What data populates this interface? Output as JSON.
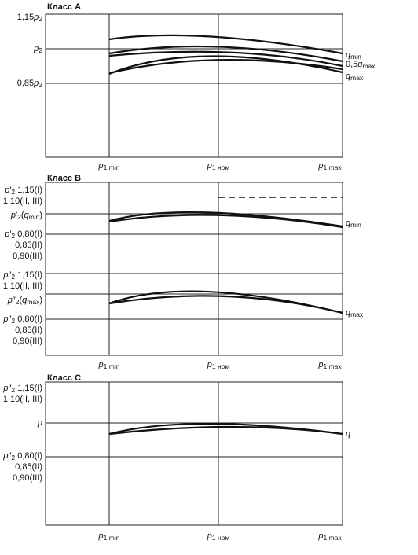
{
  "panels": [
    {
      "title": "Класс A",
      "y_labels": [
        [
          {
            "text": "1,15"
          },
          {
            "text": "p",
            "italic": true
          },
          {
            "text": "2",
            "sub": true
          }
        ],
        [
          {
            "text": "p",
            "italic": true
          },
          {
            "text": "2",
            "sub": true
          }
        ],
        [
          {
            "text": "0,85"
          },
          {
            "text": "p",
            "italic": true
          },
          {
            "text": "2",
            "sub": true
          }
        ]
      ],
      "x_labels": [
        [
          {
            "text": "p",
            "italic": true
          },
          {
            "text": "1 min",
            "sub": true
          }
        ],
        [
          {
            "text": "p",
            "italic": true
          },
          {
            "text": "1 ном",
            "sub": true
          }
        ],
        [
          {
            "text": "p",
            "italic": true
          },
          {
            "text": "1 max",
            "sub": true
          }
        ]
      ],
      "curve_labels": [
        [
          {
            "text": "q",
            "italic": true
          },
          {
            "text": "min",
            "sub": true
          }
        ],
        [
          {
            "text": "0,5"
          },
          {
            "text": "q",
            "italic": true
          },
          {
            "text": "max",
            "sub": true
          }
        ],
        [
          {
            "text": "q",
            "italic": true
          },
          {
            "text": "max",
            "sub": true
          }
        ]
      ]
    },
    {
      "title": "Класс B",
      "y_labels": [
        [
          {
            "text": "p",
            "italic": true
          },
          {
            "text": "′"
          },
          {
            "text": "2",
            "sub": true
          },
          {
            "text": " 1,15(I)"
          }
        ],
        [
          {
            "text": "1,10(II, III)"
          }
        ],
        [
          {
            "text": "p",
            "italic": true
          },
          {
            "text": "′"
          },
          {
            "text": "2",
            "sub": true
          },
          {
            "text": "("
          },
          {
            "text": "q",
            "italic": true
          },
          {
            "text": "min",
            "sub": true
          },
          {
            "text": ")"
          }
        ],
        [
          {
            "text": "p",
            "italic": true
          },
          {
            "text": "′"
          },
          {
            "text": "2",
            "sub": true
          },
          {
            "text": " 0,80(I)"
          }
        ],
        [
          {
            "text": "0,85(II)"
          }
        ],
        [
          {
            "text": "0,90(III)"
          }
        ],
        [
          {
            "text": "p",
            "italic": true
          },
          {
            "text": "″"
          },
          {
            "text": "2",
            "sub": true
          },
          {
            "text": " 1,15(I)"
          }
        ],
        [
          {
            "text": "1,10(II, III)"
          }
        ],
        [
          {
            "text": "p",
            "italic": true
          },
          {
            "text": "″"
          },
          {
            "text": "2",
            "sub": true
          },
          {
            "text": "("
          },
          {
            "text": "q",
            "italic": true
          },
          {
            "text": "max",
            "sub": true
          },
          {
            "text": ")"
          }
        ],
        [
          {
            "text": "p",
            "italic": true
          },
          {
            "text": "″"
          },
          {
            "text": "2",
            "sub": true
          },
          {
            "text": " 0,80(I)"
          }
        ],
        [
          {
            "text": "0,85(II)"
          }
        ],
        [
          {
            "text": "0,90(III)"
          }
        ]
      ],
      "x_labels": [
        [
          {
            "text": "p",
            "italic": true
          },
          {
            "text": "1 min",
            "sub": true
          }
        ],
        [
          {
            "text": "p",
            "italic": true
          },
          {
            "text": "1 ном",
            "sub": true
          }
        ],
        [
          {
            "text": "p",
            "italic": true
          },
          {
            "text": "1 max",
            "sub": true
          }
        ]
      ],
      "curve_labels": [
        [
          {
            "text": "q",
            "italic": true
          },
          {
            "text": "min",
            "sub": true
          }
        ],
        [
          {
            "text": "q",
            "italic": true
          },
          {
            "text": "max",
            "sub": true
          }
        ]
      ]
    },
    {
      "title": "Класс C",
      "y_labels": [
        [
          {
            "text": "p",
            "italic": true
          },
          {
            "text": "″"
          },
          {
            "text": "2",
            "sub": true
          },
          {
            "text": " 1,15(I)"
          }
        ],
        [
          {
            "text": "1,10(II, III)"
          }
        ],
        [
          {
            "text": "p",
            "italic": true
          }
        ],
        [
          {
            "text": "p",
            "italic": true
          },
          {
            "text": "″"
          },
          {
            "text": "2",
            "sub": true
          },
          {
            "text": " 0,80(I)"
          }
        ],
        [
          {
            "text": "0,85(II)"
          }
        ],
        [
          {
            "text": "0,90(III)"
          }
        ]
      ],
      "x_labels": [
        [
          {
            "text": "p",
            "italic": true
          },
          {
            "text": "1 min",
            "sub": true
          }
        ],
        [
          {
            "text": "p",
            "italic": true
          },
          {
            "text": "1 ном",
            "sub": true
          }
        ],
        [
          {
            "text": "p",
            "italic": true
          },
          {
            "text": "1 max",
            "sub": true
          }
        ]
      ],
      "curve_labels": [
        [
          {
            "text": "q",
            "italic": true
          }
        ]
      ]
    }
  ]
}
